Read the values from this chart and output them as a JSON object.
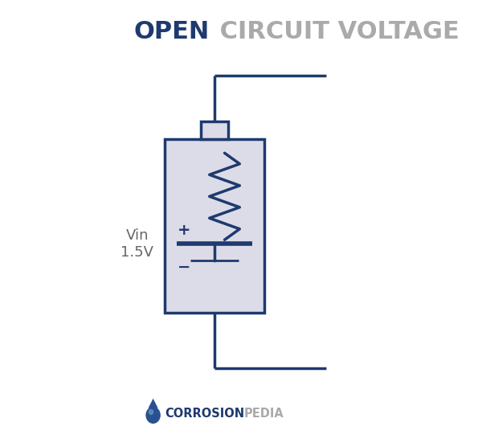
{
  "title_open": "OPEN",
  "title_rest": " CIRCUIT VOLTAGE",
  "title_open_color": "#1e3a6e",
  "title_rest_color": "#aaaaaa",
  "title_fontsize": 22,
  "dark_blue": "#1e3a6e",
  "light_gray": "#dcdce8",
  "bg_color": "#ffffff",
  "corrosion_color": "#1e3a6e",
  "corrosion_gray": "#aaaaaa",
  "vin_text": "Vin",
  "voltage_text": "1.5V",
  "label_color": "#666666",
  "footer_corrosion": "CORROSION",
  "footer_pedia": "PEDIA",
  "line_width": 2.2
}
